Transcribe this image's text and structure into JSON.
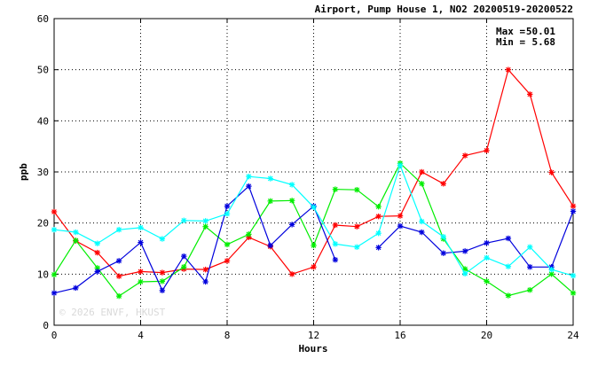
{
  "chart_data": {
    "type": "line",
    "title": "Airport, Pump House 1, NO2 20200519-20200522",
    "xlabel": "Hours",
    "ylabel": "ppb",
    "xlim": [
      0,
      24
    ],
    "ylim": [
      0,
      60
    ],
    "xticks": [
      0,
      4,
      8,
      12,
      16,
      20,
      24
    ],
    "yticks": [
      0,
      10,
      20,
      30,
      40,
      50,
      60
    ],
    "grid": true,
    "stats": {
      "max_label": "Max =",
      "max_value": "50.01",
      "min_label": "Min =",
      "min_value": "5.68"
    },
    "watermark": "© 2026 ENVF, HKUST",
    "x": [
      0,
      1,
      2,
      3,
      4,
      5,
      6,
      7,
      8,
      9,
      10,
      11,
      12,
      13,
      14,
      15,
      16,
      17,
      18,
      19,
      20,
      21,
      22,
      23,
      24
    ],
    "series": [
      {
        "color": "#ff0000",
        "values": [
          22.2,
          16.5,
          14.2,
          9.6,
          10.5,
          10.3,
          11.0,
          10.9,
          12.6,
          17.2,
          15.4,
          10.0,
          11.4,
          19.6,
          19.3,
          21.3,
          21.4,
          30.0,
          27.7,
          33.2,
          34.2,
          50.0,
          45.2,
          29.9,
          23.3
        ]
      },
      {
        "color": "#00ee00",
        "values": [
          9.9,
          16.6,
          11.2,
          5.7,
          8.5,
          8.6,
          11.4,
          19.3,
          15.8,
          17.8,
          24.3,
          24.4,
          15.6,
          26.6,
          26.5,
          23.2,
          31.7,
          27.7,
          16.9,
          11.0,
          8.6,
          5.8,
          6.9,
          10.0,
          6.3
        ]
      },
      {
        "color": "#0000dd",
        "values": [
          6.3,
          7.3,
          10.5,
          12.6,
          16.2,
          6.8,
          13.5,
          8.5,
          23.3,
          27.2,
          15.6,
          19.7,
          23.3,
          12.8,
          null,
          15.2,
          19.4,
          18.2,
          14.1,
          14.5,
          16.1,
          17.0,
          11.4,
          11.4,
          22.3
        ]
      },
      {
        "color": "#00ffff",
        "values": [
          18.7,
          18.2,
          16.0,
          18.7,
          19.1,
          16.9,
          20.5,
          20.4,
          21.8,
          29.1,
          28.7,
          27.5,
          23.1,
          15.9,
          15.3,
          18.0,
          31.3,
          20.3,
          17.3,
          10.1,
          13.2,
          11.5,
          15.3,
          10.9,
          9.7
        ]
      }
    ]
  }
}
